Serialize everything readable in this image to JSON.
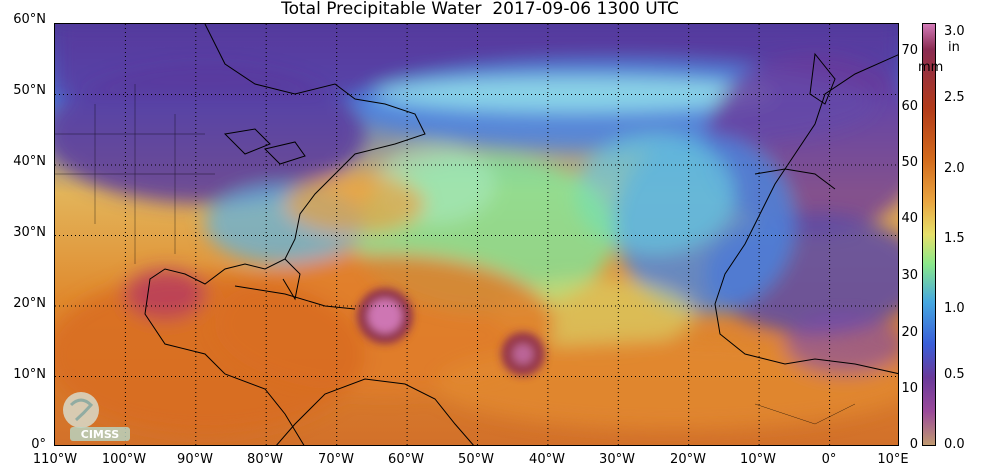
{
  "title": "Total Precipitable Water  2017-09-06 1300 UTC",
  "map": {
    "lat_labels": [
      "60°N",
      "50°N",
      "40°N",
      "30°N",
      "20°N",
      "10°N",
      "0°"
    ],
    "lon_labels": [
      "110°W",
      "100°W",
      "90°W",
      "80°W",
      "70°W",
      "60°W",
      "50°W",
      "40°W",
      "30°W",
      "20°W",
      "10°W",
      "0°",
      "10°E"
    ],
    "lat_range": [
      0,
      60
    ],
    "lon_range": [
      -110,
      10
    ],
    "grid": true,
    "grid_style": "dotted",
    "ocean_color": "#e89a3a"
  },
  "colorbar": {
    "mm_label": "mm",
    "in_label": "in",
    "mm_ticks": [
      "70",
      "60",
      "50",
      "40",
      "30",
      "20",
      "10",
      "0"
    ],
    "in_ticks": [
      "3.0",
      "2.5",
      "2.0",
      "1.5",
      "1.0",
      "0.5",
      "0.0"
    ],
    "colors": [
      "#d27ab8",
      "#8a2c52",
      "#b23b1a",
      "#d26a1c",
      "#e9a440",
      "#e6e06a",
      "#8ae88a",
      "#46a8e0",
      "#3a5ed8",
      "#6a3a9a",
      "#9a4a9a",
      "#c09a70"
    ]
  },
  "logo": {
    "text": "CIMSS"
  }
}
